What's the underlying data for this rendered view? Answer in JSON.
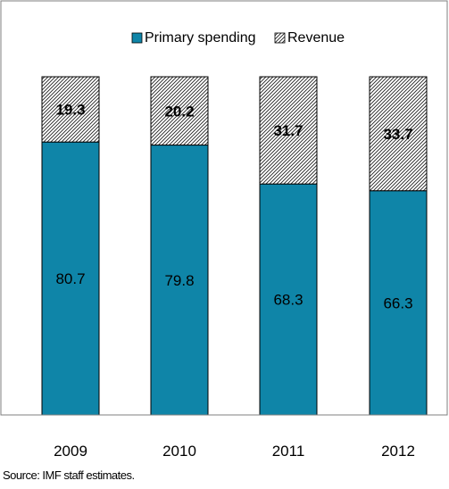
{
  "chart_data": {
    "type": "bar",
    "stacked": true,
    "categories": [
      "2009",
      "2010",
      "2011",
      "2012"
    ],
    "series": [
      {
        "name": "Primary spending",
        "values": [
          80.7,
          79.8,
          68.3,
          66.3
        ],
        "color": "#0f85a8",
        "pattern": "solid"
      },
      {
        "name": "Revenue",
        "values": [
          19.3,
          20.2,
          31.7,
          33.7
        ],
        "color": "#ffffff",
        "pattern": "diagonal-hatch"
      }
    ],
    "ylim": [
      0,
      100
    ],
    "grid": false,
    "legend_position": "top-center"
  },
  "labels": {
    "source": "Source: IMF staff estimates."
  }
}
